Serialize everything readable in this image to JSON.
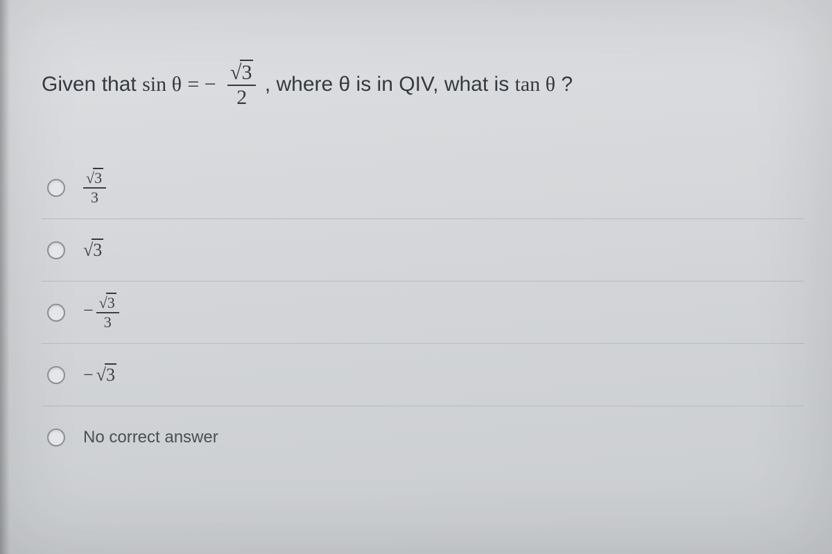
{
  "colors": {
    "background": "#d7d9da",
    "text": "#353a40",
    "option_text": "#3c4148",
    "divider": "#b8bbc0",
    "radio_border": "#8c9197",
    "radio_fill": "#e6e8ea"
  },
  "question": {
    "prefix": "Given that ",
    "sin_label": "sin θ",
    "equals": " = ",
    "minus": "−",
    "fraction": {
      "numerator_sqrt": "3",
      "numerator_radical": "√",
      "denominator": "2"
    },
    "middle": ", where θ is in QIV, what is ",
    "tan_label": "tan θ",
    "suffix": " ?"
  },
  "options": [
    {
      "id": "opt-a",
      "type": "fraction",
      "negative": false,
      "numerator_sqrt": "3",
      "denominator": "3",
      "selected": false
    },
    {
      "id": "opt-b",
      "type": "sqrt",
      "negative": false,
      "sqrt_value": "3",
      "selected": false
    },
    {
      "id": "opt-c",
      "type": "fraction",
      "negative": true,
      "numerator_sqrt": "3",
      "denominator": "3",
      "selected": false
    },
    {
      "id": "opt-d",
      "type": "sqrt",
      "negative": true,
      "sqrt_value": "3",
      "selected": false
    },
    {
      "id": "opt-e",
      "type": "text",
      "text": "No correct answer",
      "selected": false
    }
  ]
}
